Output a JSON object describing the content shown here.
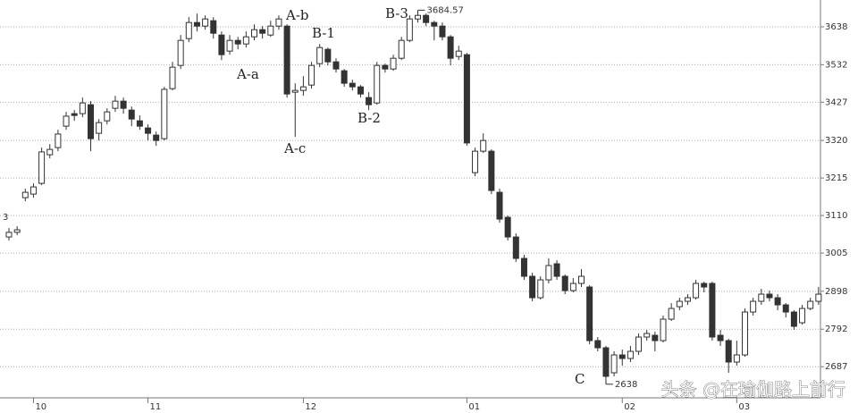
{
  "chart_data": {
    "type": "candlestick",
    "categories": [
      null,
      null,
      null,
      "10",
      null,
      null,
      null,
      null,
      null,
      null,
      null,
      null,
      null,
      null,
      null,
      null,
      null,
      "11",
      null,
      null,
      null,
      null,
      null,
      null,
      null,
      null,
      null,
      null,
      null,
      null,
      null,
      null,
      null,
      null,
      null,
      null,
      "12",
      null,
      null,
      null,
      null,
      null,
      null,
      null,
      null,
      null,
      null,
      null,
      null,
      null,
      null,
      null,
      null,
      null,
      null,
      null,
      "01",
      null,
      null,
      null,
      null,
      null,
      null,
      null,
      null,
      null,
      null,
      null,
      null,
      null,
      null,
      null,
      null,
      null,
      null,
      "02",
      null,
      null,
      null,
      null,
      null,
      null,
      null,
      null,
      null,
      null,
      null,
      null,
      null,
      "03",
      null,
      null,
      null,
      null,
      null,
      null,
      null,
      null,
      null,
      null
    ],
    "open": [
      3050,
      3063,
      3160,
      3170,
      3200,
      3280,
      3300,
      3360,
      3395,
      3395,
      3420,
      3340,
      3375,
      3410,
      3430,
      3405,
      3375,
      3355,
      3335,
      3325,
      3465,
      3530,
      3605,
      3650,
      3640,
      3655,
      3615,
      3570,
      3600,
      3590,
      3610,
      3630,
      3615,
      3640,
      3640,
      3455,
      3460,
      3475,
      3535,
      3575,
      3540,
      3515,
      3480,
      3470,
      3440,
      3425,
      3530,
      3520,
      3550,
      3600,
      3660,
      3670,
      3650,
      3640,
      3610,
      3555,
      3560,
      3230,
      3290,
      3290,
      3175,
      3105,
      3050,
      2990,
      2940,
      2880,
      2930,
      2975,
      2940,
      2900,
      2920,
      2910,
      2760,
      2740,
      2670,
      2720,
      2710,
      2730,
      2770,
      2775,
      2760,
      2820,
      2855,
      2870,
      2880,
      2920,
      2920,
      2775,
      2760,
      2700,
      2720,
      2840,
      2870,
      2890,
      2880,
      2860,
      2840,
      2810,
      2850,
      2870
    ],
    "high": [
      3075,
      3080,
      3185,
      3200,
      3300,
      3310,
      3350,
      3400,
      3405,
      3440,
      3430,
      3380,
      3410,
      3445,
      3440,
      3415,
      3390,
      3365,
      3345,
      3470,
      3540,
      3615,
      3665,
      3675,
      3670,
      3665,
      3625,
      3615,
      3610,
      3625,
      3645,
      3640,
      3655,
      3670,
      3645,
      3480,
      3500,
      3540,
      3590,
      3580,
      3550,
      3520,
      3490,
      3475,
      3455,
      3540,
      3535,
      3560,
      3610,
      3670,
      3684.57,
      3675,
      3655,
      3650,
      3615,
      3585,
      3565,
      3300,
      3340,
      3295,
      3185,
      3110,
      3060,
      3000,
      2950,
      2940,
      2990,
      2985,
      2945,
      2935,
      2960,
      2915,
      2770,
      2745,
      2730,
      2735,
      2745,
      2780,
      2790,
      2785,
      2830,
      2865,
      2880,
      2890,
      2930,
      2925,
      2925,
      2790,
      2765,
      2760,
      2850,
      2880,
      2905,
      2900,
      2890,
      2865,
      2845,
      2860,
      2880,
      2910
    ],
    "low": [
      3040,
      3055,
      3150,
      3160,
      3195,
      3270,
      3290,
      3350,
      3375,
      3385,
      3290,
      3320,
      3365,
      3400,
      3395,
      3360,
      3350,
      3320,
      3305,
      3320,
      3460,
      3520,
      3595,
      3625,
      3630,
      3605,
      3545,
      3560,
      3575,
      3580,
      3600,
      3605,
      3610,
      3630,
      3440,
      3330,
      3445,
      3465,
      3525,
      3530,
      3510,
      3470,
      3460,
      3440,
      3405,
      3420,
      3510,
      3515,
      3545,
      3595,
      3650,
      3640,
      3600,
      3600,
      3530,
      3545,
      3305,
      3220,
      3285,
      3170,
      3090,
      3040,
      2980,
      2930,
      2870,
      2875,
      2920,
      2930,
      2890,
      2895,
      2910,
      2750,
      2730,
      2638,
      2660,
      2690,
      2700,
      2720,
      2760,
      2730,
      2755,
      2815,
      2845,
      2860,
      2875,
      2895,
      2760,
      2745,
      2670,
      2690,
      2715,
      2830,
      2860,
      2870,
      2845,
      2825,
      2790,
      2805,
      2845,
      2860
    ],
    "close": [
      3063,
      3070,
      3175,
      3190,
      3288,
      3295,
      3338,
      3388,
      3390,
      3425,
      3325,
      3370,
      3400,
      3430,
      3410,
      3380,
      3360,
      3340,
      3320,
      3463,
      3525,
      3600,
      3650,
      3640,
      3660,
      3620,
      3560,
      3600,
      3590,
      3610,
      3630,
      3620,
      3640,
      3660,
      3450,
      3460,
      3470,
      3530,
      3580,
      3540,
      3520,
      3480,
      3470,
      3450,
      3420,
      3530,
      3520,
      3550,
      3600,
      3660,
      3670,
      3650,
      3640,
      3610,
      3550,
      3570,
      3313,
      3290,
      3320,
      3180,
      3100,
      3050,
      2990,
      2940,
      2880,
      2930,
      2970,
      2940,
      2900,
      2920,
      2940,
      2760,
      2740,
      2660,
      2720,
      2710,
      2730,
      2770,
      2780,
      2760,
      2820,
      2850,
      2870,
      2880,
      2920,
      2910,
      2770,
      2760,
      2700,
      2720,
      2840,
      2870,
      2890,
      2880,
      2860,
      2840,
      2800,
      2850,
      2870,
      2890
    ],
    "up_color": "#ffffff",
    "down_color": "#333333",
    "edge_color": "#333333",
    "ylim": [
      2600,
      3713
    ],
    "yticks": [
      2687,
      2792,
      2898,
      3005,
      3110,
      3215,
      3320,
      3427,
      3532,
      3638
    ],
    "grid": true,
    "annotations": [
      {
        "text": "A-b",
        "index": 33
      },
      {
        "text": "A-a",
        "index": 28
      },
      {
        "text": "B-1",
        "index": 38
      },
      {
        "text": "A-c",
        "index": 35
      },
      {
        "text": "B-2",
        "index": 44
      },
      {
        "text": "B-3",
        "index": 48
      },
      {
        "text": "C",
        "index": 72
      }
    ],
    "high_label": "3684.57",
    "low_label": "2638",
    "left_label": "3",
    "watermark": "头条 @在瑜伽路上前行"
  }
}
